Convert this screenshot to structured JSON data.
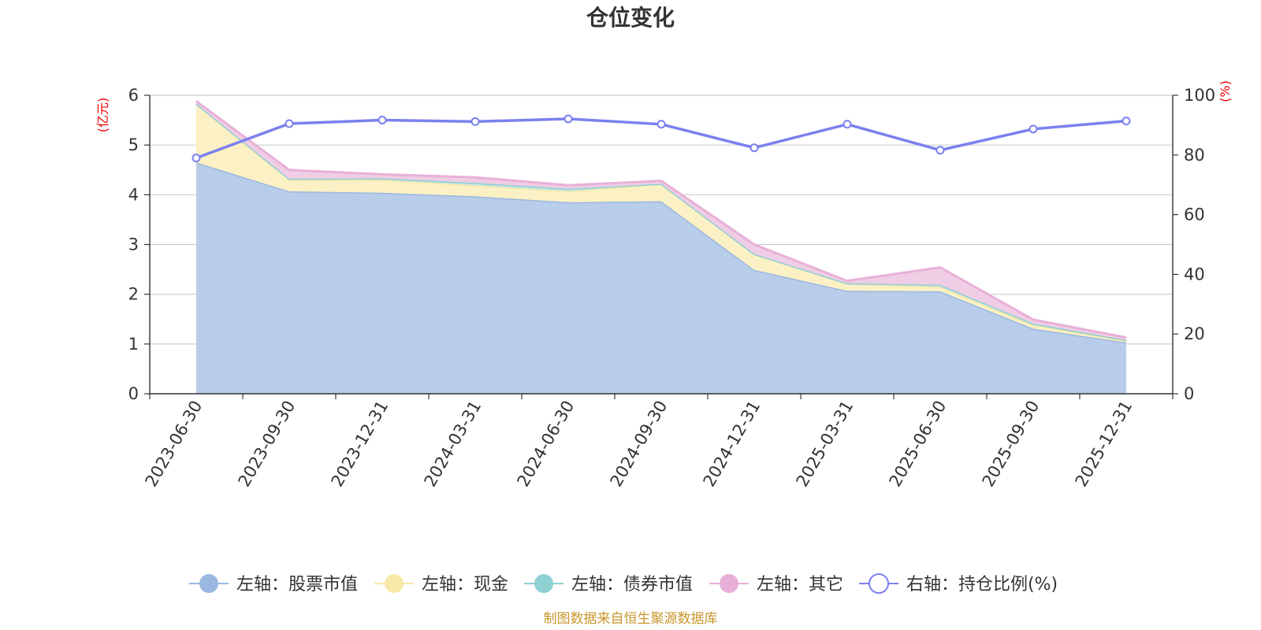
{
  "chart_data": {
    "type": "area",
    "title": "仓位变化",
    "left_axis_unit": "(亿元)",
    "right_axis_unit": "(%)",
    "categories": [
      "2023-06-30",
      "2023-09-30",
      "2023-12-31",
      "2024-03-31",
      "2024-06-30",
      "2024-09-30",
      "2024-12-31",
      "2025-03-31",
      "2025-06-30",
      "2025-09-30",
      "2025-12-31"
    ],
    "left_ylim": [
      0,
      6
    ],
    "left_ticks": [
      "0",
      "1",
      "2",
      "3",
      "4",
      "5",
      "6"
    ],
    "right_ylim": [
      0,
      100
    ],
    "right_ticks": [
      "0",
      "20",
      "40",
      "60",
      "80",
      "100"
    ],
    "series": [
      {
        "name": "左轴：股票市值",
        "axis": "left",
        "type": "stacked-area",
        "color": "#9ab8e0",
        "fill": "#b8cdea",
        "values": [
          4.65,
          4.07,
          4.04,
          3.97,
          3.85,
          3.87,
          2.49,
          2.07,
          2.06,
          1.31,
          1.03
        ]
      },
      {
        "name": "左轴：现金",
        "axis": "left",
        "type": "stacked-area",
        "color": "#f8e8a8",
        "fill": "#fcf1c4",
        "values": [
          1.18,
          0.24,
          0.26,
          0.22,
          0.22,
          0.35,
          0.32,
          0.15,
          0.09,
          0.07,
          0.03
        ]
      },
      {
        "name": "左轴：债券市值",
        "axis": "left",
        "type": "stacked-area",
        "color": "#8fd0d3",
        "fill": "#c2e6e8",
        "values": [
          0,
          0.01,
          0.03,
          0.05,
          0.05,
          0,
          0,
          0,
          0.04,
          0.03,
          0.02
        ]
      },
      {
        "name": "左轴：其它",
        "axis": "left",
        "type": "stacked-area",
        "color": "#e8b0d8",
        "fill": "#efcde4",
        "values": [
          0.05,
          0.18,
          0.08,
          0.11,
          0.07,
          0.06,
          0.19,
          0.05,
          0.35,
          0.08,
          0.05
        ]
      },
      {
        "name": "右轴：持仓比例(%)",
        "axis": "right",
        "type": "line",
        "color": "#7b80ef",
        "values": [
          79,
          90.5,
          91.7,
          91.2,
          92.1,
          90.3,
          82.4,
          90.3,
          81.6,
          88.7,
          91.4
        ]
      }
    ],
    "legend_position": "bottom",
    "grid": true
  },
  "source_note": "制图数据来自恒生聚源数据库"
}
